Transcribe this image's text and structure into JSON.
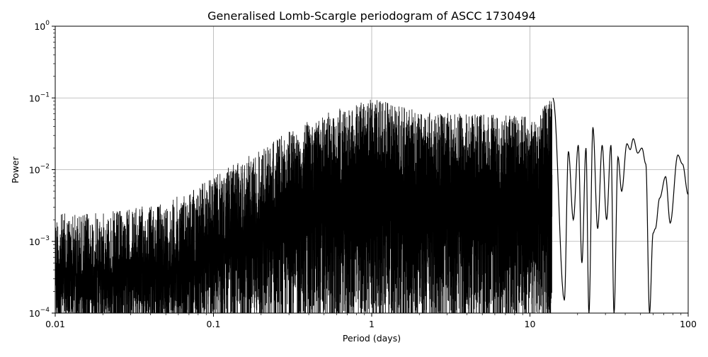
{
  "chart_data": {
    "type": "line",
    "title": "Generalised Lomb-Scargle periodogram of ASCC 1730494",
    "xlabel": "Period (days)",
    "ylabel": "Power",
    "xscale": "log",
    "yscale": "log",
    "xlim": [
      0.01,
      100
    ],
    "ylim": [
      0.0001,
      1
    ],
    "x_ticks": [
      {
        "value": 0.01,
        "label": "0.01"
      },
      {
        "value": 0.1,
        "label": "0.1"
      },
      {
        "value": 1,
        "label": "1"
      },
      {
        "value": 10,
        "label": "10"
      },
      {
        "value": 100,
        "label": "100"
      }
    ],
    "y_ticks": [
      {
        "value": 0.0001,
        "base": "10",
        "exp": "−4"
      },
      {
        "value": 0.001,
        "base": "10",
        "exp": "−3"
      },
      {
        "value": 0.01,
        "base": "10",
        "exp": "−2"
      },
      {
        "value": 0.1,
        "base": "10",
        "exp": "−1"
      },
      {
        "value": 1,
        "base": "10",
        "exp": "0"
      }
    ],
    "grid": true,
    "legend": "none",
    "line_color": "#000000",
    "peaks": [
      {
        "x": 1.0,
        "y": 0.1
      },
      {
        "x": 13.8,
        "y": 0.1
      },
      {
        "x": 25.0,
        "y": 0.039
      },
      {
        "x": 45.0,
        "y": 0.027
      },
      {
        "x": 86.0,
        "y": 0.016
      }
    ],
    "envelope": [
      {
        "x": 0.01,
        "y": 0.0025
      },
      {
        "x": 0.02,
        "y": 0.0025
      },
      {
        "x": 0.05,
        "y": 0.0035
      },
      {
        "x": 0.1,
        "y": 0.008
      },
      {
        "x": 0.2,
        "y": 0.02
      },
      {
        "x": 0.3,
        "y": 0.035
      },
      {
        "x": 0.5,
        "y": 0.06
      },
      {
        "x": 1.0,
        "y": 0.1
      },
      {
        "x": 2.0,
        "y": 0.065
      },
      {
        "x": 5.0,
        "y": 0.06
      },
      {
        "x": 10.0,
        "y": 0.055
      },
      {
        "x": 13.8,
        "y": 0.1
      }
    ],
    "sparse_curve": [
      {
        "x": 14.0,
        "y": 0.1
      },
      {
        "x": 16.5,
        "y": 0.00015
      },
      {
        "x": 17.5,
        "y": 0.018
      },
      {
        "x": 18.8,
        "y": 0.002
      },
      {
        "x": 20.2,
        "y": 0.022
      },
      {
        "x": 21.3,
        "y": 0.0005
      },
      {
        "x": 22.6,
        "y": 0.02
      },
      {
        "x": 23.6,
        "y": 0.0001
      },
      {
        "x": 25.0,
        "y": 0.039
      },
      {
        "x": 26.8,
        "y": 0.0015
      },
      {
        "x": 28.6,
        "y": 0.022
      },
      {
        "x": 30.5,
        "y": 0.002
      },
      {
        "x": 32.5,
        "y": 0.022
      },
      {
        "x": 34.0,
        "y": 0.0001
      },
      {
        "x": 36.0,
        "y": 0.015
      },
      {
        "x": 38.0,
        "y": 0.005
      },
      {
        "x": 41.0,
        "y": 0.023
      },
      {
        "x": 43.0,
        "y": 0.019
      },
      {
        "x": 45.0,
        "y": 0.027
      },
      {
        "x": 48.0,
        "y": 0.017
      },
      {
        "x": 51.0,
        "y": 0.02
      },
      {
        "x": 54.0,
        "y": 0.012
      },
      {
        "x": 57.0,
        "y": 0.0001
      },
      {
        "x": 60.0,
        "y": 0.0013
      },
      {
        "x": 62.0,
        "y": 0.0015
      },
      {
        "x": 66.0,
        "y": 0.004
      },
      {
        "x": 72.0,
        "y": 0.008
      },
      {
        "x": 77.0,
        "y": 0.0018
      },
      {
        "x": 86.0,
        "y": 0.016
      },
      {
        "x": 92.0,
        "y": 0.012
      },
      {
        "x": 100.0,
        "y": 0.0045
      }
    ]
  }
}
